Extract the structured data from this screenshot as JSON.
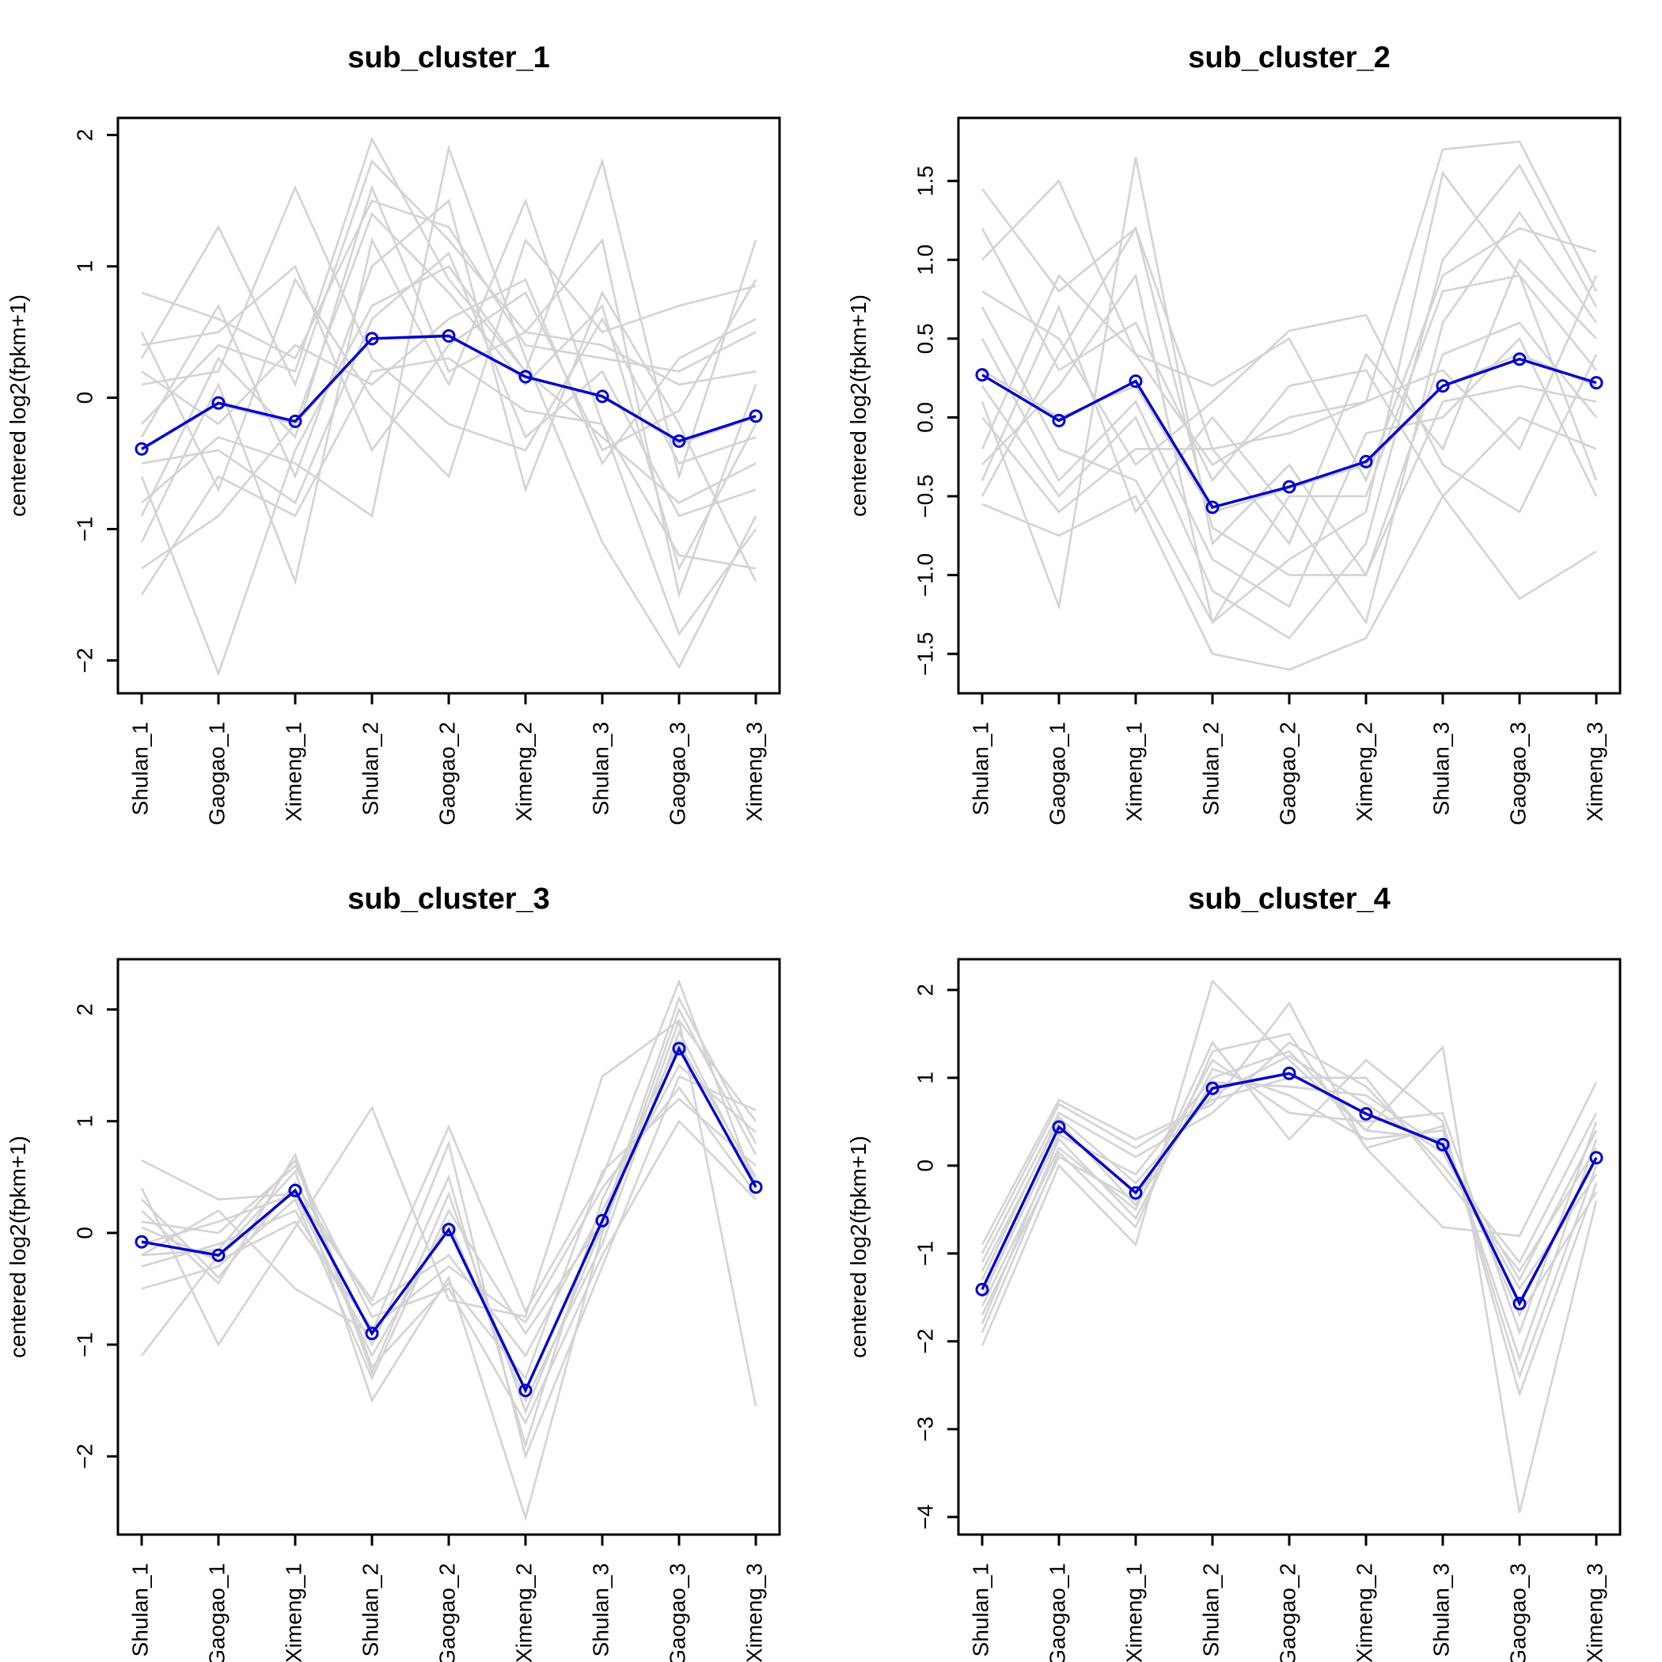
{
  "colors": {
    "background": "#ffffff",
    "genes": "#d3d3d3",
    "mean": "#0000cd",
    "axis": "#000000"
  },
  "chart_data": [
    {
      "type": "line",
      "title": "sub_cluster_1",
      "ylabel": "centered log2(fpkm+1)",
      "categories": [
        "Shulan_1",
        "Gaogao_1",
        "Ximeng_1",
        "Shulan_2",
        "Gaogao_2",
        "Ximeng_2",
        "Shulan_3",
        "Gaogao_3",
        "Ximeng_3"
      ],
      "ylim": [
        -2.25,
        2.13
      ],
      "yticks": [
        -2,
        -1,
        0,
        1,
        2
      ],
      "mean": [
        -0.39,
        -0.04,
        -0.18,
        0.45,
        0.47,
        0.16,
        0.01,
        -0.33,
        -0.14
      ],
      "gene_lines": [
        [
          -0.4,
          -0.05,
          -0.2,
          0.45,
          0.48,
          0.15,
          0.02,
          -0.35,
          -0.15
        ],
        [
          0.8,
          0.6,
          0.3,
          1.5,
          1.3,
          0.4,
          0.3,
          0.2,
          0.5
        ],
        [
          -1.5,
          -0.6,
          -0.9,
          0.2,
          0.3,
          -0.1,
          -0.2,
          -1.8,
          -1.0
        ],
        [
          0.3,
          1.3,
          0.1,
          1.8,
          1.2,
          0.5,
          0.4,
          0.1,
          0.2
        ],
        [
          -0.6,
          -2.1,
          -0.4,
          0.7,
          1.0,
          0.2,
          -0.3,
          -0.8,
          -0.5
        ],
        [
          0.1,
          0.2,
          1.6,
          0.3,
          -0.2,
          -0.4,
          0.6,
          -0.5,
          -0.3
        ],
        [
          -1.1,
          0.1,
          -1.4,
          1.2,
          0.1,
          1.5,
          -0.2,
          -1.2,
          -1.3
        ],
        [
          -0.2,
          0.4,
          0.2,
          1.97,
          0.9,
          0.2,
          1.8,
          -0.6,
          1.2
        ],
        [
          -0.8,
          -0.3,
          -0.5,
          -0.9,
          1.9,
          0.3,
          -1.1,
          -2.05,
          -0.9
        ],
        [
          0.5,
          -0.7,
          0.9,
          0.0,
          -0.6,
          1.2,
          0.5,
          0.7,
          0.85
        ],
        [
          -0.3,
          0.7,
          -0.6,
          1.0,
          1.5,
          -0.7,
          0.8,
          -0.2,
          -1.4
        ],
        [
          0.2,
          -0.2,
          0.4,
          0.1,
          0.6,
          0.9,
          -0.5,
          0.3,
          0.6
        ],
        [
          -0.9,
          0.3,
          -0.3,
          1.6,
          0.2,
          0.5,
          1.2,
          -1.5,
          0.1
        ],
        [
          -0.5,
          -0.4,
          -0.8,
          0.6,
          1.1,
          -0.3,
          0.2,
          -0.9,
          -0.7
        ],
        [
          0.4,
          0.5,
          1.0,
          -0.4,
          0.4,
          0.8,
          -0.4,
          -0.1,
          0.9
        ],
        [
          -1.3,
          -0.9,
          -0.2,
          1.4,
          0.8,
          0.1,
          0.7,
          -1.3,
          -0.2
        ]
      ]
    },
    {
      "type": "line",
      "title": "sub_cluster_2",
      "ylabel": "centered log2(fpkm+1)",
      "categories": [
        "Shulan_1",
        "Gaogao_1",
        "Ximeng_1",
        "Shulan_2",
        "Gaogao_2",
        "Ximeng_2",
        "Shulan_3",
        "Gaogao_3",
        "Ximeng_3"
      ],
      "ylim": [
        -1.75,
        1.9
      ],
      "yticks": [
        -1.5,
        -1.0,
        -0.5,
        0.0,
        0.5,
        1.0,
        1.5
      ],
      "mean": [
        0.27,
        -0.02,
        0.23,
        -0.57,
        -0.44,
        -0.28,
        0.2,
        0.37,
        0.22
      ],
      "gene_lines": [
        [
          0.3,
          0.0,
          0.2,
          -0.6,
          -0.45,
          -0.3,
          0.2,
          0.4,
          0.2
        ],
        [
          1.45,
          0.8,
          1.2,
          -0.2,
          -0.1,
          0.1,
          1.7,
          1.75,
          0.8
        ],
        [
          -0.55,
          -0.75,
          -0.5,
          -1.5,
          -1.6,
          -1.4,
          -0.5,
          -1.15,
          -0.85
        ],
        [
          1.0,
          1.5,
          0.4,
          0.2,
          0.5,
          -0.4,
          0.9,
          1.2,
          1.05
        ],
        [
          0.1,
          -1.2,
          1.65,
          -0.8,
          -0.3,
          -1.0,
          0.4,
          0.6,
          0.0
        ],
        [
          0.8,
          0.5,
          -0.3,
          0.1,
          0.55,
          0.65,
          -0.3,
          -0.6,
          0.4
        ],
        [
          -0.3,
          0.2,
          0.9,
          -1.3,
          -0.9,
          -0.6,
          1.55,
          0.9,
          0.3
        ],
        [
          0.5,
          -0.4,
          0.1,
          -0.9,
          -1.2,
          -0.1,
          0.0,
          0.5,
          -0.5
        ],
        [
          -0.4,
          0.7,
          -0.6,
          0.0,
          -0.6,
          -1.3,
          0.6,
          1.3,
          0.6
        ],
        [
          1.2,
          0.3,
          0.6,
          -0.4,
          0.2,
          0.3,
          -0.5,
          0.0,
          -0.2
        ],
        [
          0.2,
          -0.5,
          0.0,
          -1.1,
          -1.4,
          -0.8,
          1.0,
          1.6,
          0.7
        ],
        [
          -0.2,
          0.9,
          0.4,
          -0.3,
          0.0,
          0.1,
          0.3,
          -0.2,
          0.9
        ],
        [
          0.7,
          -0.2,
          -0.4,
          -1.3,
          -0.5,
          -0.5,
          0.8,
          0.9,
          -0.4
        ],
        [
          -0.5,
          0.4,
          1.2,
          -0.7,
          -1.0,
          -1.0,
          0.1,
          0.2,
          0.1
        ],
        [
          0.0,
          -0.6,
          -0.2,
          -0.2,
          -0.8,
          0.4,
          -0.2,
          1.0,
          0.5
        ]
      ]
    },
    {
      "type": "line",
      "title": "sub_cluster_3",
      "ylabel": "centered log2(fpkm+1)",
      "categories": [
        "Shulan_1",
        "Gaogao_1",
        "Ximeng_1",
        "Shulan_2",
        "Gaogao_2",
        "Ximeng_2",
        "Shulan_3",
        "Gaogao_3",
        "Ximeng_3"
      ],
      "ylim": [
        -2.7,
        2.45
      ],
      "yticks": [
        -2,
        -1,
        0,
        1,
        2
      ],
      "mean": [
        -0.08,
        -0.2,
        0.38,
        -0.9,
        0.03,
        -1.41,
        0.11,
        1.65,
        0.41
      ],
      "gene_lines": [
        [
          0.65,
          0.3,
          0.35,
          -0.6,
          0.95,
          -0.7,
          0.5,
          2.25,
          0.4
        ],
        [
          -1.1,
          -0.2,
          0.55,
          -1.5,
          -0.4,
          -2.55,
          0.0,
          1.9,
          1.0
        ],
        [
          0.4,
          -1.0,
          0.05,
          1.12,
          -0.6,
          -0.75,
          1.4,
          1.9,
          -1.55
        ],
        [
          -0.2,
          0.2,
          -0.5,
          -0.9,
          0.8,
          -2.0,
          -0.3,
          1.4,
          1.1
        ],
        [
          0.2,
          -0.45,
          0.7,
          -1.2,
          -0.45,
          -1.3,
          0.55,
          1.2,
          0.6
        ],
        [
          -0.5,
          -0.3,
          0.3,
          -1.3,
          0.2,
          -0.9,
          0.1,
          2.1,
          0.8
        ],
        [
          0.1,
          0.0,
          0.6,
          -0.75,
          -0.5,
          -1.7,
          -0.2,
          1.0,
          0.3
        ],
        [
          -0.3,
          -0.1,
          0.2,
          -1.0,
          0.5,
          -1.9,
          0.3,
          1.7,
          0.5
        ],
        [
          0.3,
          -0.4,
          0.45,
          -0.65,
          -0.2,
          -1.1,
          0.2,
          1.5,
          0.9
        ],
        [
          -0.1,
          0.1,
          0.35,
          -1.1,
          0.1,
          -1.5,
          -0.1,
          1.8,
          0.45
        ],
        [
          0.05,
          -0.25,
          0.1,
          -0.85,
          -0.3,
          -0.8,
          0.4,
          1.3,
          0.35
        ],
        [
          -0.2,
          -0.15,
          0.65,
          -1.25,
          0.35,
          -1.6,
          0.05,
          2.0,
          0.7
        ]
      ]
    },
    {
      "type": "line",
      "title": "sub_cluster_4",
      "ylabel": "centered log2(fpkm+1)",
      "categories": [
        "Shulan_1",
        "Gaogao_1",
        "Ximeng_1",
        "Shulan_2",
        "Gaogao_2",
        "Ximeng_2",
        "Shulan_3",
        "Gaogao_3",
        "Ximeng_3"
      ],
      "ylim": [
        -4.2,
        2.35
      ],
      "yticks": [
        -4,
        -3,
        -2,
        -1,
        0,
        1,
        2
      ],
      "mean": [
        -1.41,
        0.44,
        -0.31,
        0.88,
        1.05,
        0.59,
        0.24,
        -1.57,
        0.09
      ],
      "gene_lines": [
        [
          -1.4,
          0.45,
          -0.3,
          0.9,
          1.05,
          0.6,
          0.25,
          -1.55,
          0.1
        ],
        [
          -2.05,
          0.0,
          -0.9,
          2.1,
          1.2,
          0.4,
          1.35,
          -3.95,
          -0.4
        ],
        [
          -0.9,
          0.75,
          0.3,
          0.7,
          1.85,
          0.2,
          -0.7,
          -0.8,
          0.95
        ],
        [
          -1.6,
          0.2,
          -0.5,
          1.4,
          0.3,
          1.2,
          0.5,
          -2.6,
          -0.2
        ],
        [
          -1.1,
          0.6,
          0.1,
          0.6,
          1.4,
          0.9,
          0.0,
          -1.1,
          0.6
        ],
        [
          -1.8,
          0.3,
          -0.6,
          1.1,
          0.8,
          0.3,
          0.4,
          -2.2,
          0.3
        ],
        [
          -1.3,
          0.55,
          -0.2,
          0.8,
          1.25,
          0.7,
          0.15,
          -1.4,
          -0.1
        ],
        [
          -1.7,
          0.1,
          -0.4,
          1.2,
          0.6,
          0.5,
          0.6,
          -1.9,
          0.5
        ],
        [
          -1.0,
          0.7,
          0.2,
          0.75,
          1.0,
          1.0,
          -0.1,
          -1.2,
          0.2
        ],
        [
          -1.5,
          0.35,
          -0.1,
          1.0,
          1.3,
          0.4,
          0.3,
          -1.7,
          -0.3
        ],
        [
          -1.2,
          0.5,
          -0.45,
          0.95,
          0.9,
          0.8,
          0.2,
          -1.3,
          0.4
        ],
        [
          -1.9,
          0.15,
          -0.7,
          1.3,
          1.5,
          0.2,
          0.45,
          -2.4,
          0.0
        ]
      ]
    }
  ]
}
